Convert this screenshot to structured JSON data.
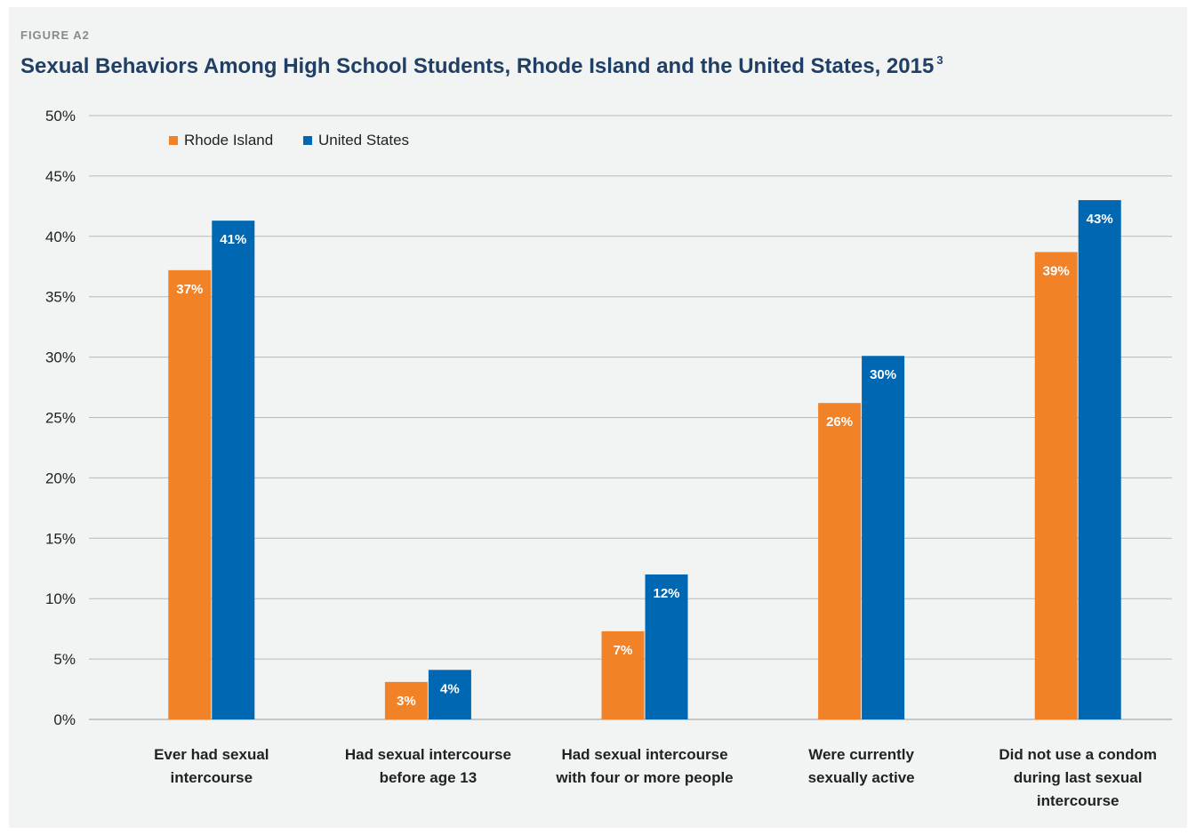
{
  "figure_label": "FIGURE A2",
  "title": "Sexual Behaviors Among High School Students, Rhode Island and the United States, 2015",
  "title_footnote": "3",
  "colors": {
    "rhode_island": "#f28227",
    "united_states": "#0068b3"
  },
  "chart_data": {
    "type": "bar",
    "categories": [
      [
        "Ever had sexual",
        "intercourse"
      ],
      [
        "Had sexual intercourse",
        "before age 13"
      ],
      [
        "Had sexual intercourse",
        "with four or more people"
      ],
      [
        "Were currently",
        "sexually active"
      ],
      [
        "Did not use a condom",
        "during last sexual",
        "intercourse"
      ]
    ],
    "series": [
      {
        "name": "Rhode Island",
        "values": [
          37.2,
          3.1,
          7.3,
          26.2,
          38.7
        ],
        "labels": [
          "37%",
          "3%",
          "7%",
          "26%",
          "39%"
        ]
      },
      {
        "name": "United States",
        "values": [
          41.3,
          4.1,
          12.0,
          30.1,
          43.0
        ],
        "labels": [
          "41%",
          "4%",
          "12%",
          "30%",
          "43%"
        ]
      }
    ],
    "yticks": [
      "0%",
      "5%",
      "10%",
      "15%",
      "20%",
      "25%",
      "30%",
      "35%",
      "40%",
      "45%",
      "50%"
    ],
    "ylim": [
      0,
      50
    ],
    "grid": true,
    "legend": "top-left"
  }
}
